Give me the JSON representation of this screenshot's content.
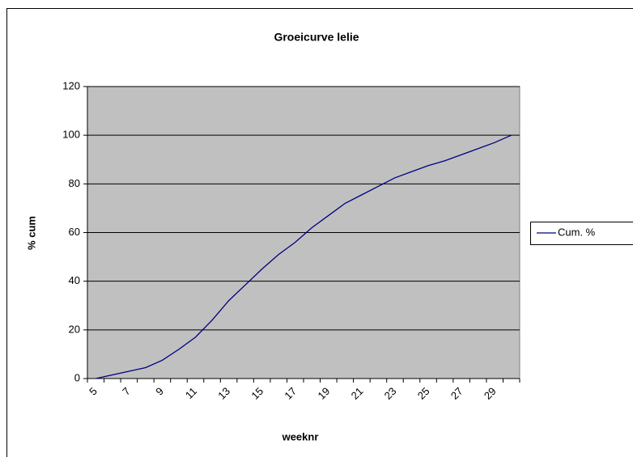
{
  "chart_data": {
    "type": "line",
    "title": "Groeicurve lelie",
    "x_label": "weeknr",
    "y_label": "% cum",
    "categories": [
      "5",
      null,
      "7",
      null,
      "9",
      null,
      "11",
      null,
      "13",
      null,
      "15",
      null,
      "17",
      null,
      "19",
      null,
      "21",
      null,
      "23",
      null,
      "25",
      null,
      "27",
      null,
      "29",
      null
    ],
    "series": [
      {
        "name": "Cum. %",
        "color": "#000080",
        "values": [
          0,
          1.5,
          3,
          4.5,
          7.5,
          12,
          17,
          24,
          32,
          38.5,
          45,
          51,
          56,
          62,
          67,
          72,
          75.5,
          79,
          82.5,
          85,
          87.5,
          89.5,
          92,
          94.5,
          97,
          100
        ]
      }
    ],
    "ylim": [
      0,
      120
    ],
    "yticks": [
      0,
      20,
      40,
      60,
      80,
      100,
      120
    ],
    "grid": true,
    "legend": "right",
    "plot_color": "#c0c0c0"
  }
}
